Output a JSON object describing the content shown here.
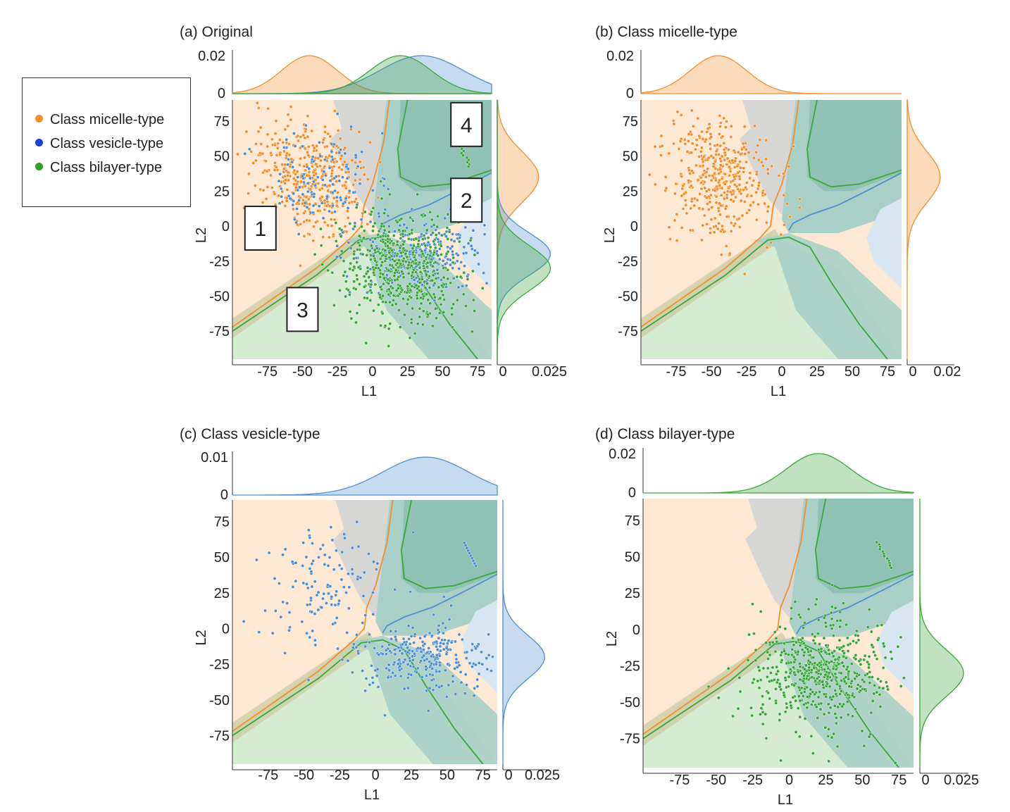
{
  "legend": {
    "items": [
      {
        "label": "Class micelle-type",
        "color": "#f28e2b"
      },
      {
        "label": "Class vesicle-type",
        "color": "#1f3fd1"
      },
      {
        "label": "Class bilayer-type",
        "color": "#2ca02c"
      }
    ]
  },
  "colors": {
    "micelle": "#f28e2b",
    "vesicle": "#4e8fd0",
    "bilayer": "#3aa63a",
    "region_micelle": "#fde8d4",
    "region_bilayer": "#d5ecd2",
    "region_vesicle": "#d8e6f2",
    "region_gray": "#d6d6d4",
    "region_teal": "#a9d0c6",
    "region_teal_dark": "#8fc2b4"
  },
  "chart_data": [
    {
      "type": "scatter",
      "panel_label": "(a)",
      "title": "Original",
      "xlabel": "L1",
      "ylabel": "L2",
      "xlim": [
        -100,
        85
      ],
      "ylim": [
        -95,
        90
      ],
      "xticks": [
        -75,
        -50,
        -25,
        0,
        25,
        50,
        75
      ],
      "yticks": [
        75,
        50,
        25,
        0,
        -25,
        -50,
        -75
      ],
      "top_density_ticks": [
        "0.02",
        "0"
      ],
      "right_density_ticks": [
        "0",
        "0.025"
      ],
      "series": [
        {
          "name": "Class micelle-type",
          "color": "#f28e2b",
          "center": [
            -45,
            35
          ],
          "approx_points": 900
        },
        {
          "name": "Class vesicle-type",
          "color": "#4e8fd0",
          "center": [
            35,
            -20
          ],
          "approx_points": 900
        },
        {
          "name": "Class bilayer-type",
          "color": "#3aa63a",
          "center": [
            20,
            -30
          ],
          "approx_points": 1200
        }
      ],
      "annotations": [
        {
          "text": "1",
          "x": -80,
          "y": -2
        },
        {
          "text": "2",
          "x": 67,
          "y": 18
        },
        {
          "text": "3",
          "x": -50,
          "y": -60
        },
        {
          "text": "4",
          "x": 67,
          "y": 72
        }
      ]
    },
    {
      "type": "scatter",
      "panel_label": "(b)",
      "title": "Class micelle-type",
      "xlabel": "L1",
      "ylabel": "L2",
      "xlim": [
        -100,
        85
      ],
      "ylim": [
        -95,
        90
      ],
      "xticks": [
        -75,
        -50,
        -25,
        0,
        25,
        50,
        75
      ],
      "yticks": [
        75,
        50,
        25,
        0,
        -25,
        -50,
        -75
      ],
      "top_density_ticks": [
        "0.02",
        "0"
      ],
      "right_density_ticks": [
        "0",
        "0.02"
      ],
      "series": [
        {
          "name": "Class micelle-type",
          "color": "#f28e2b",
          "center": [
            -45,
            35
          ],
          "approx_points": 900
        }
      ]
    },
    {
      "type": "scatter",
      "panel_label": "(c)",
      "title": "Class vesicle-type",
      "xlabel": "L1",
      "ylabel": "L2",
      "xlim": [
        -100,
        85
      ],
      "ylim": [
        -95,
        90
      ],
      "xticks": [
        -75,
        -50,
        -25,
        0,
        25,
        50,
        75
      ],
      "yticks": [
        75,
        50,
        25,
        0,
        -25,
        -50,
        -75
      ],
      "top_density_ticks": [
        "0.01",
        "0"
      ],
      "right_density_ticks": [
        "0",
        "0.025"
      ],
      "series": [
        {
          "name": "Class vesicle-type",
          "color": "#4e8fd0",
          "center": [
            35,
            -20
          ],
          "approx_points": 900
        }
      ]
    },
    {
      "type": "scatter",
      "panel_label": "(d)",
      "title": "Class bilayer-type",
      "xlabel": "L1",
      "ylabel": "L2",
      "xlim": [
        -100,
        85
      ],
      "ylim": [
        -95,
        90
      ],
      "xticks": [
        -75,
        -50,
        -25,
        0,
        25,
        50,
        75
      ],
      "yticks": [
        75,
        50,
        25,
        0,
        -25,
        -50,
        -75
      ],
      "top_density_ticks": [
        "0.02",
        "0"
      ],
      "right_density_ticks": [
        "0",
        "0.025"
      ],
      "series": [
        {
          "name": "Class bilayer-type",
          "color": "#3aa63a",
          "center": [
            20,
            -30
          ],
          "approx_points": 1200
        }
      ]
    }
  ]
}
